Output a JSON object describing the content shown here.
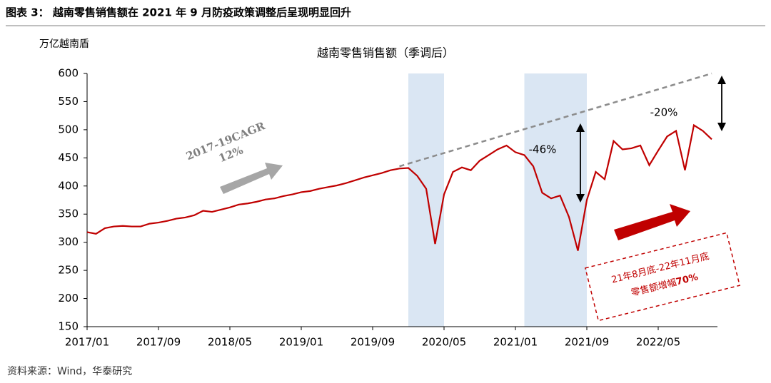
{
  "header": {
    "title": "图表 3：  越南零售销售额在 2021 年 9 月防疫政策调整后呈现明显回升"
  },
  "chart_data": {
    "type": "line",
    "title": "越南零售销售额（季调后）",
    "y_label": "万亿越南盾",
    "categories": [
      "2017/01",
      null,
      null,
      null,
      null,
      null,
      null,
      null,
      "2017/09",
      null,
      null,
      null,
      null,
      null,
      null,
      null,
      "2018/05",
      null,
      null,
      null,
      null,
      null,
      null,
      null,
      "2019/01",
      null,
      null,
      null,
      null,
      null,
      null,
      null,
      "2019/09",
      null,
      null,
      null,
      null,
      null,
      null,
      null,
      "2020/05",
      null,
      null,
      null,
      null,
      null,
      null,
      null,
      "2021/01",
      null,
      null,
      null,
      null,
      null,
      null,
      null,
      "2021/09",
      null,
      null,
      null,
      null,
      null,
      null,
      null,
      "2022/05",
      null,
      null,
      null,
      null,
      null,
      null
    ],
    "series": [
      {
        "color": "#c00000",
        "values": [
          318,
          315,
          325,
          328,
          329,
          328,
          328,
          333,
          335,
          338,
          342,
          344,
          348,
          356,
          354,
          358,
          362,
          367,
          369,
          372,
          376,
          378,
          382,
          385,
          389,
          391,
          395,
          398,
          401,
          405,
          410,
          415,
          419,
          423,
          428,
          431,
          432,
          418,
          395,
          297,
          385,
          425,
          433,
          428,
          445,
          455,
          465,
          472,
          460,
          455,
          435,
          388,
          378,
          383,
          345,
          285,
          375,
          425,
          412,
          480,
          465,
          467,
          472,
          437,
          463,
          488,
          498,
          428,
          508,
          498,
          483
        ]
      }
    ],
    "trend": {
      "color": "#8c8c8c",
      "index": [
        35,
        70
      ],
      "values": [
        435,
        600
      ]
    },
    "shaded": {
      "color": "#dae6f3",
      "ranges": [
        [
          36,
          40
        ],
        [
          49,
          56
        ]
      ]
    },
    "ylim": [
      150,
      600
    ],
    "yticks": [
      150,
      200,
      250,
      300,
      350,
      400,
      450,
      500,
      550,
      600
    ],
    "annotations": {
      "cagr": [
        "2017-19CAGR",
        "12%"
      ],
      "drop": "-46%",
      "gap": "-20%",
      "box": [
        "21年8月底-22年11月底",
        "零售额增幅",
        "70%"
      ]
    }
  },
  "footer": {
    "source": "资料来源：Wind，华泰研究"
  }
}
